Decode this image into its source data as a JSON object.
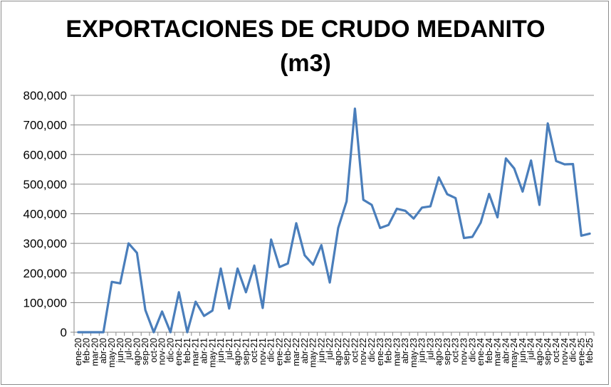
{
  "chart_data": {
    "type": "line",
    "title": [
      "EXPORTACIONES DE CRUDO MEDANITO",
      "(m3)"
    ],
    "xlabel": "",
    "ylabel": "",
    "ylim": [
      0,
      800000
    ],
    "y_ticks": [
      0,
      100000,
      200000,
      300000,
      400000,
      500000,
      600000,
      700000,
      800000
    ],
    "y_tick_labels": [
      "0",
      "100,000",
      "200,000",
      "300,000",
      "400,000",
      "500,000",
      "600,000",
      "700,000",
      "800,000"
    ],
    "grid": true,
    "legend": "none",
    "categories": [
      "ene-20",
      "feb-20",
      "mar-20",
      "abr-20",
      "may-20",
      "jun-20",
      "jul-20",
      "ago-20",
      "sep-20",
      "oct-20",
      "nov-20",
      "dic-20",
      "ene-21",
      "feb-21",
      "mar-21",
      "abr-21",
      "may-21",
      "jun-21",
      "jul-21",
      "ago-21",
      "sep-21",
      "oct-21",
      "nov-21",
      "dic-21",
      "ene-22",
      "feb-22",
      "mar-22",
      "abr-22",
      "may-22",
      "jun-22",
      "jul-22",
      "ago-22",
      "sep-22",
      "oct-22",
      "nov-22",
      "dic-22",
      "ene-23",
      "feb-23",
      "mar-23",
      "abr-23",
      "may-23",
      "jun-23",
      "jul-23",
      "ago-23",
      "sep-23",
      "oct-23",
      "nov-23",
      "dic-23",
      "ene-24",
      "feb-24",
      "mar-24",
      "abr-24",
      "may-24",
      "jun-24",
      "jul-24",
      "ago-24",
      "sep-24",
      "oct-24",
      "nov-24",
      "dic-24",
      "ene-25",
      "feb-25"
    ],
    "series": [
      {
        "color": "#4a7ebb",
        "values": [
          0,
          0,
          0,
          0,
          170000,
          165000,
          300000,
          268000,
          75000,
          0,
          70000,
          0,
          135000,
          0,
          103000,
          55000,
          73000,
          215000,
          80000,
          215000,
          135000,
          225000,
          82000,
          313000,
          220000,
          232000,
          368000,
          260000,
          228000,
          294000,
          168000,
          352000,
          442000,
          755000,
          447000,
          430000,
          352000,
          362000,
          417000,
          410000,
          384000,
          421000,
          425000,
          523000,
          466000,
          453000,
          318000,
          322000,
          370000,
          467000,
          388000,
          587000,
          553000,
          475000,
          580000,
          430000,
          705000,
          578000,
          567000,
          568000,
          326000,
          333000
        ]
      }
    ]
  }
}
